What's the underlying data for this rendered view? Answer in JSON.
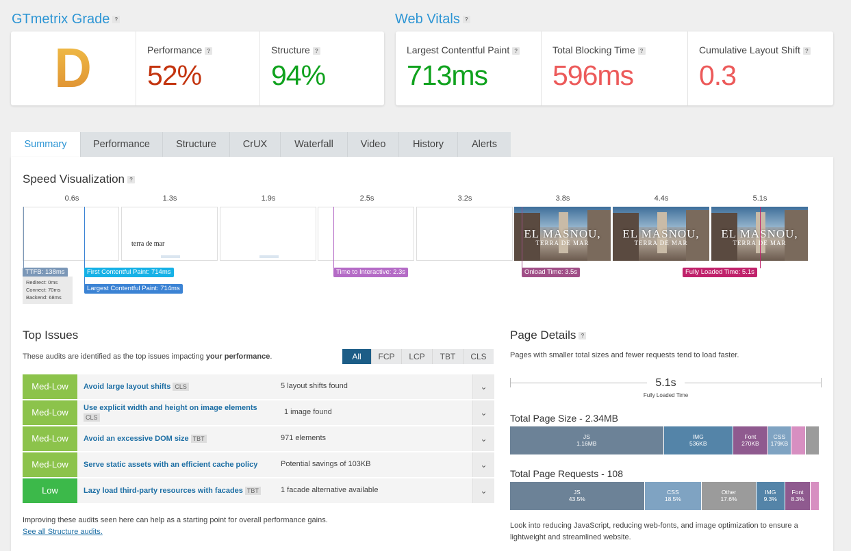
{
  "grade_section": {
    "title": "GTmetrix Grade",
    "help": "?",
    "grade": "D",
    "performance": {
      "label": "Performance",
      "help": "?",
      "value": "52%",
      "color": "#c3340f"
    },
    "structure": {
      "label": "Structure",
      "help": "?",
      "value": "94%",
      "color": "#10a21e"
    }
  },
  "vitals_section": {
    "title": "Web Vitals",
    "help": "?",
    "lcp": {
      "label": "Largest Contentful Paint",
      "help": "?",
      "value": "713ms",
      "color": "#10a21e"
    },
    "tbt": {
      "label": "Total Blocking Time",
      "help": "?",
      "value": "596ms",
      "color": "#ec5a5a"
    },
    "cls": {
      "label": "Cumulative Layout Shift",
      "help": "?",
      "value": "0.3",
      "color": "#ec5a5a"
    }
  },
  "tabs": [
    "Summary",
    "Performance",
    "Structure",
    "CrUX",
    "Waterfall",
    "Video",
    "History",
    "Alerts"
  ],
  "speed": {
    "title": "Speed Visualization",
    "help": "?",
    "ticks": [
      "0.6s",
      "1.3s",
      "1.9s",
      "2.5s",
      "3.2s",
      "3.8s",
      "4.4s",
      "5.1s"
    ],
    "frame_text": "terra de mar",
    "photo_title": "EL MASNOU,",
    "photo_sub": "TERRA DE MAR",
    "markers": {
      "ttfb": "TTFB: 138ms",
      "redirect": "Redirect: 0ms",
      "connect": "Connect: 70ms",
      "backend": "Backend: 68ms",
      "fcp": "First Contentful Paint: 714ms",
      "lcp": "Largest Contentful Paint: 714ms",
      "tti": "Time to Interactive: 2.3s",
      "onload": "Onload Time: 3.5s",
      "fully": "Fully Loaded Time: 5.1s"
    }
  },
  "top_issues": {
    "title": "Top Issues",
    "desc_pre": "These audits are identified as the top issues impacting ",
    "desc_bold": "your performance",
    "desc_post": ".",
    "filters": [
      "All",
      "FCP",
      "LCP",
      "TBT",
      "CLS"
    ],
    "rows": [
      {
        "severity": "Med-Low",
        "color": "#8cc34b",
        "title": "Avoid large layout shifts",
        "tag": "CLS",
        "detail": "5 layout shifts found"
      },
      {
        "severity": "Med-Low",
        "color": "#8cc34b",
        "title": "Use explicit width and height on image elements",
        "tag": "CLS",
        "detail": "1 image found"
      },
      {
        "severity": "Med-Low",
        "color": "#8cc34b",
        "title": "Avoid an excessive DOM size",
        "tag": "TBT",
        "detail": "971 elements"
      },
      {
        "severity": "Med-Low",
        "color": "#8cc34b",
        "title": "Serve static assets with an efficient cache policy",
        "tag": "",
        "detail": "Potential savings of 103KB"
      },
      {
        "severity": "Low",
        "color": "#3cb94a",
        "title": "Lazy load third-party resources with facades",
        "tag": "TBT",
        "detail": "1 facade alternative available"
      }
    ],
    "footer": "Improving these audits seen here can help as a starting point for overall performance gains.",
    "link": "See all Structure audits."
  },
  "page_details": {
    "title": "Page Details",
    "help": "?",
    "desc": "Pages with smaller total sizes and fewer requests tend to load faster.",
    "fully_loaded": "5.1s",
    "fully_loaded_label": "Fully Loaded Time",
    "size_title": "Total Page Size - 2.34MB",
    "size": [
      {
        "name": "JS",
        "value": "1.16MB",
        "share": 0.497,
        "color": "#6c8297"
      },
      {
        "name": "IMG",
        "value": "536KB",
        "share": 0.224,
        "color": "#5484a8"
      },
      {
        "name": "Font",
        "value": "270KB",
        "share": 0.113,
        "color": "#8f5a8f"
      },
      {
        "name": "CSS",
        "value": "179KB",
        "share": 0.075,
        "color": "#7fa3c2"
      },
      {
        "name": "",
        "value": "",
        "share": 0.047,
        "color": "#d78fc1"
      },
      {
        "name": "",
        "value": "",
        "share": 0.044,
        "color": "#9b9b9b"
      }
    ],
    "req_title": "Total Page Requests - 108",
    "requests": [
      {
        "name": "JS",
        "value": "43.5%",
        "share": 0.435,
        "color": "#6c8297"
      },
      {
        "name": "CSS",
        "value": "18.5%",
        "share": 0.185,
        "color": "#7fa3c2"
      },
      {
        "name": "Other",
        "value": "17.6%",
        "share": 0.176,
        "color": "#9b9b9b"
      },
      {
        "name": "IMG",
        "value": "9.3%",
        "share": 0.093,
        "color": "#5484a8"
      },
      {
        "name": "Font",
        "value": "8.3%",
        "share": 0.083,
        "color": "#8f5a8f"
      },
      {
        "name": "",
        "value": "",
        "share": 0.028,
        "color": "#d78fc1"
      }
    ],
    "advice": "Look into reducing JavaScript, reducing web-fonts, and image optimization to ensure a lightweight and streamlined website."
  }
}
